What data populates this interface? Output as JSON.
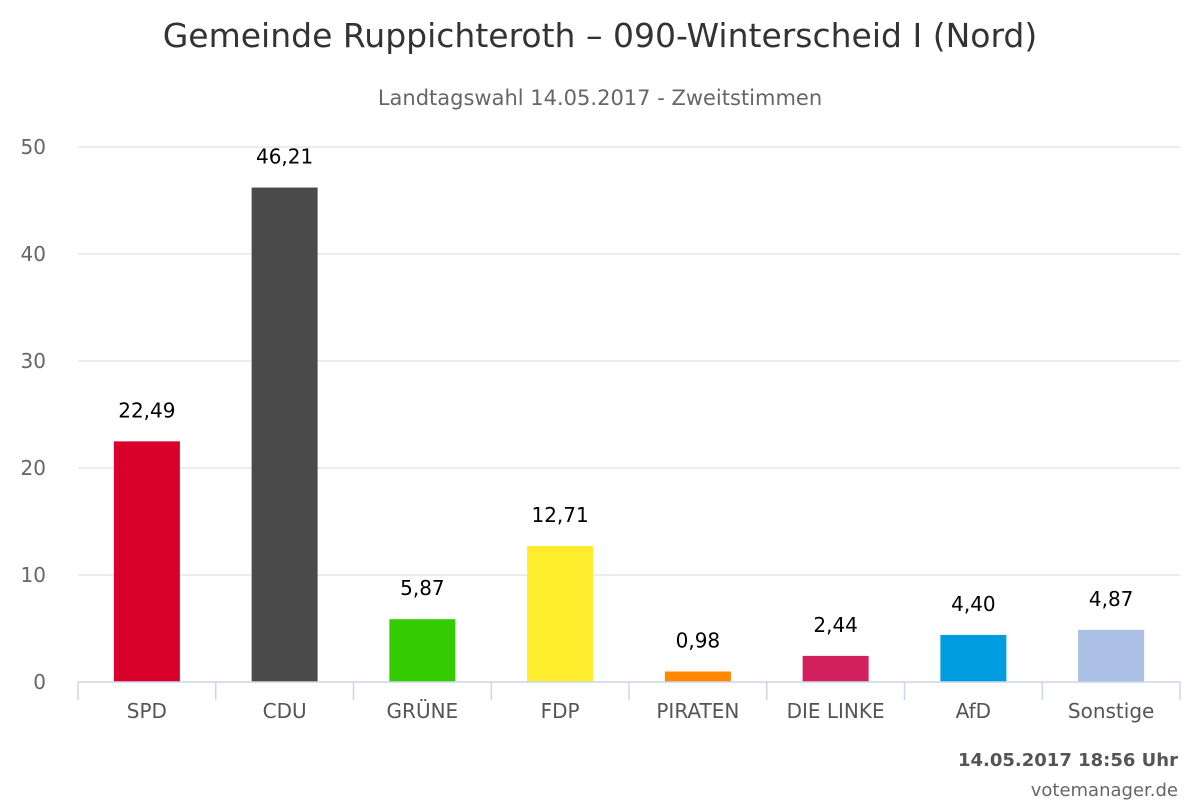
{
  "chart_data": {
    "type": "bar",
    "title": "Gemeinde Ruppichteroth – 090-Winterscheid I (Nord)",
    "subtitle": "Landtagswahl 14.05.2017 - Zweitstimmen",
    "categories": [
      "SPD",
      "CDU",
      "GRÜNE",
      "FDP",
      "PIRATEN",
      "DIE LINKE",
      "AfD",
      "Sonstige"
    ],
    "values": [
      22.49,
      46.21,
      5.87,
      12.71,
      0.98,
      2.44,
      4.4,
      4.87
    ],
    "value_labels": [
      "22,49",
      "46,21",
      "5,87",
      "12,71",
      "0,98",
      "2,44",
      "4,40",
      "4,87"
    ],
    "colors": [
      "#d9002b",
      "#4a4a4a",
      "#33cc00",
      "#fded2c",
      "#ff8800",
      "#d2205d",
      "#009ee0",
      "#aabfe3"
    ],
    "ylim": [
      0,
      50
    ],
    "yticks": [
      "0",
      "10",
      "20",
      "30",
      "40",
      "50"
    ],
    "grid": true,
    "xlabel": "",
    "ylabel": ""
  },
  "footer": {
    "timestamp": "14.05.2017 18:56 Uhr",
    "credit": "votemanager.de"
  }
}
